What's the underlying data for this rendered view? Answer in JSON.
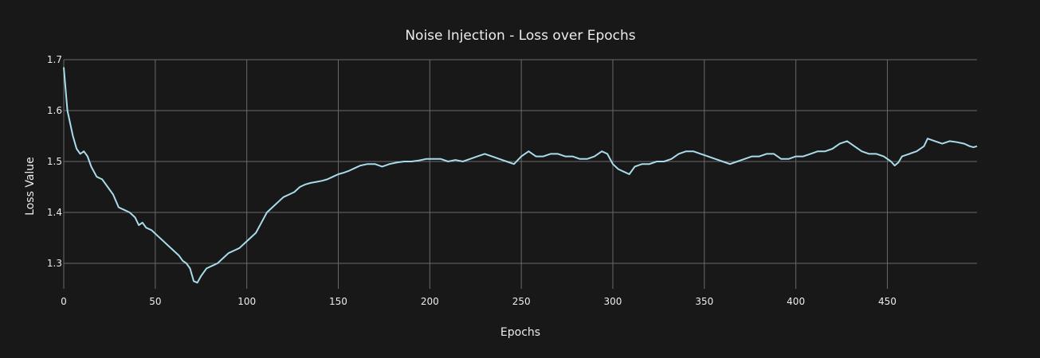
{
  "colors": {
    "background": "#181818",
    "grid": "#6a6a6a",
    "text": "#ececec",
    "line": "#a8dcea"
  },
  "chart_data": {
    "type": "line",
    "title": "Noise Injection - Loss over Epochs",
    "xlabel": "Epochs",
    "ylabel": "Loss Value",
    "xlim": [
      0,
      499
    ],
    "ylim": [
      1.25,
      1.7
    ],
    "x_ticks": [
      0,
      50,
      100,
      150,
      200,
      250,
      300,
      350,
      400,
      450
    ],
    "y_ticks": [
      1.3,
      1.4,
      1.5,
      1.6,
      1.7
    ],
    "x_tick_labels": [
      "0",
      "50",
      "100",
      "150",
      "200",
      "250",
      "300",
      "350",
      "400",
      "450"
    ],
    "y_tick_labels": [
      "1.3",
      "1.4",
      "1.5",
      "1.6",
      "1.7"
    ],
    "grid": true,
    "series": [
      {
        "color": "#a8dcea",
        "points": [
          [
            0,
            1.685
          ],
          [
            2,
            1.6
          ],
          [
            5,
            1.55
          ],
          [
            7,
            1.525
          ],
          [
            9,
            1.515
          ],
          [
            11,
            1.52
          ],
          [
            13,
            1.51
          ],
          [
            15,
            1.49
          ],
          [
            18,
            1.47
          ],
          [
            21,
            1.465
          ],
          [
            24,
            1.45
          ],
          [
            27,
            1.435
          ],
          [
            30,
            1.41
          ],
          [
            33,
            1.405
          ],
          [
            36,
            1.4
          ],
          [
            39,
            1.39
          ],
          [
            41,
            1.375
          ],
          [
            43,
            1.38
          ],
          [
            45,
            1.37
          ],
          [
            48,
            1.365
          ],
          [
            51,
            1.355
          ],
          [
            54,
            1.345
          ],
          [
            57,
            1.335
          ],
          [
            60,
            1.325
          ],
          [
            63,
            1.315
          ],
          [
            65,
            1.305
          ],
          [
            67,
            1.3
          ],
          [
            69,
            1.29
          ],
          [
            71,
            1.265
          ],
          [
            73,
            1.262
          ],
          [
            75,
            1.275
          ],
          [
            78,
            1.29
          ],
          [
            81,
            1.295
          ],
          [
            84,
            1.3
          ],
          [
            87,
            1.31
          ],
          [
            90,
            1.32
          ],
          [
            93,
            1.325
          ],
          [
            96,
            1.33
          ],
          [
            99,
            1.34
          ],
          [
            102,
            1.35
          ],
          [
            105,
            1.36
          ],
          [
            108,
            1.38
          ],
          [
            111,
            1.4
          ],
          [
            114,
            1.41
          ],
          [
            117,
            1.42
          ],
          [
            120,
            1.43
          ],
          [
            123,
            1.435
          ],
          [
            126,
            1.44
          ],
          [
            129,
            1.45
          ],
          [
            132,
            1.455
          ],
          [
            135,
            1.458
          ],
          [
            138,
            1.46
          ],
          [
            141,
            1.462
          ],
          [
            144,
            1.465
          ],
          [
            147,
            1.47
          ],
          [
            150,
            1.475
          ],
          [
            153,
            1.478
          ],
          [
            156,
            1.482
          ],
          [
            159,
            1.487
          ],
          [
            162,
            1.492
          ],
          [
            166,
            1.495
          ],
          [
            170,
            1.495
          ],
          [
            174,
            1.49
          ],
          [
            178,
            1.495
          ],
          [
            182,
            1.498
          ],
          [
            186,
            1.5
          ],
          [
            190,
            1.5
          ],
          [
            194,
            1.502
          ],
          [
            198,
            1.505
          ],
          [
            202,
            1.505
          ],
          [
            206,
            1.505
          ],
          [
            210,
            1.5
          ],
          [
            214,
            1.503
          ],
          [
            218,
            1.5
          ],
          [
            222,
            1.505
          ],
          [
            226,
            1.51
          ],
          [
            230,
            1.515
          ],
          [
            234,
            1.51
          ],
          [
            238,
            1.505
          ],
          [
            242,
            1.5
          ],
          [
            246,
            1.495
          ],
          [
            250,
            1.51
          ],
          [
            254,
            1.52
          ],
          [
            258,
            1.51
          ],
          [
            262,
            1.51
          ],
          [
            266,
            1.515
          ],
          [
            270,
            1.515
          ],
          [
            274,
            1.51
          ],
          [
            278,
            1.51
          ],
          [
            282,
            1.505
          ],
          [
            286,
            1.505
          ],
          [
            290,
            1.51
          ],
          [
            294,
            1.52
          ],
          [
            297,
            1.515
          ],
          [
            300,
            1.495
          ],
          [
            303,
            1.485
          ],
          [
            306,
            1.48
          ],
          [
            309,
            1.475
          ],
          [
            312,
            1.49
          ],
          [
            316,
            1.495
          ],
          [
            320,
            1.495
          ],
          [
            324,
            1.5
          ],
          [
            328,
            1.5
          ],
          [
            332,
            1.505
          ],
          [
            336,
            1.515
          ],
          [
            340,
            1.52
          ],
          [
            344,
            1.52
          ],
          [
            348,
            1.515
          ],
          [
            352,
            1.51
          ],
          [
            356,
            1.505
          ],
          [
            360,
            1.5
          ],
          [
            364,
            1.495
          ],
          [
            368,
            1.5
          ],
          [
            372,
            1.505
          ],
          [
            376,
            1.51
          ],
          [
            380,
            1.51
          ],
          [
            384,
            1.515
          ],
          [
            388,
            1.515
          ],
          [
            392,
            1.505
          ],
          [
            396,
            1.505
          ],
          [
            400,
            1.51
          ],
          [
            404,
            1.51
          ],
          [
            408,
            1.515
          ],
          [
            412,
            1.52
          ],
          [
            416,
            1.52
          ],
          [
            420,
            1.525
          ],
          [
            424,
            1.535
          ],
          [
            428,
            1.54
          ],
          [
            432,
            1.53
          ],
          [
            436,
            1.52
          ],
          [
            440,
            1.515
          ],
          [
            444,
            1.515
          ],
          [
            448,
            1.51
          ],
          [
            452,
            1.5
          ],
          [
            454,
            1.492
          ],
          [
            456,
            1.498
          ],
          [
            458,
            1.51
          ],
          [
            462,
            1.515
          ],
          [
            466,
            1.52
          ],
          [
            470,
            1.53
          ],
          [
            472,
            1.545
          ],
          [
            476,
            1.54
          ],
          [
            480,
            1.535
          ],
          [
            484,
            1.54
          ],
          [
            488,
            1.538
          ],
          [
            492,
            1.535
          ],
          [
            495,
            1.53
          ],
          [
            497,
            1.528
          ],
          [
            499,
            1.53
          ]
        ]
      }
    ]
  }
}
